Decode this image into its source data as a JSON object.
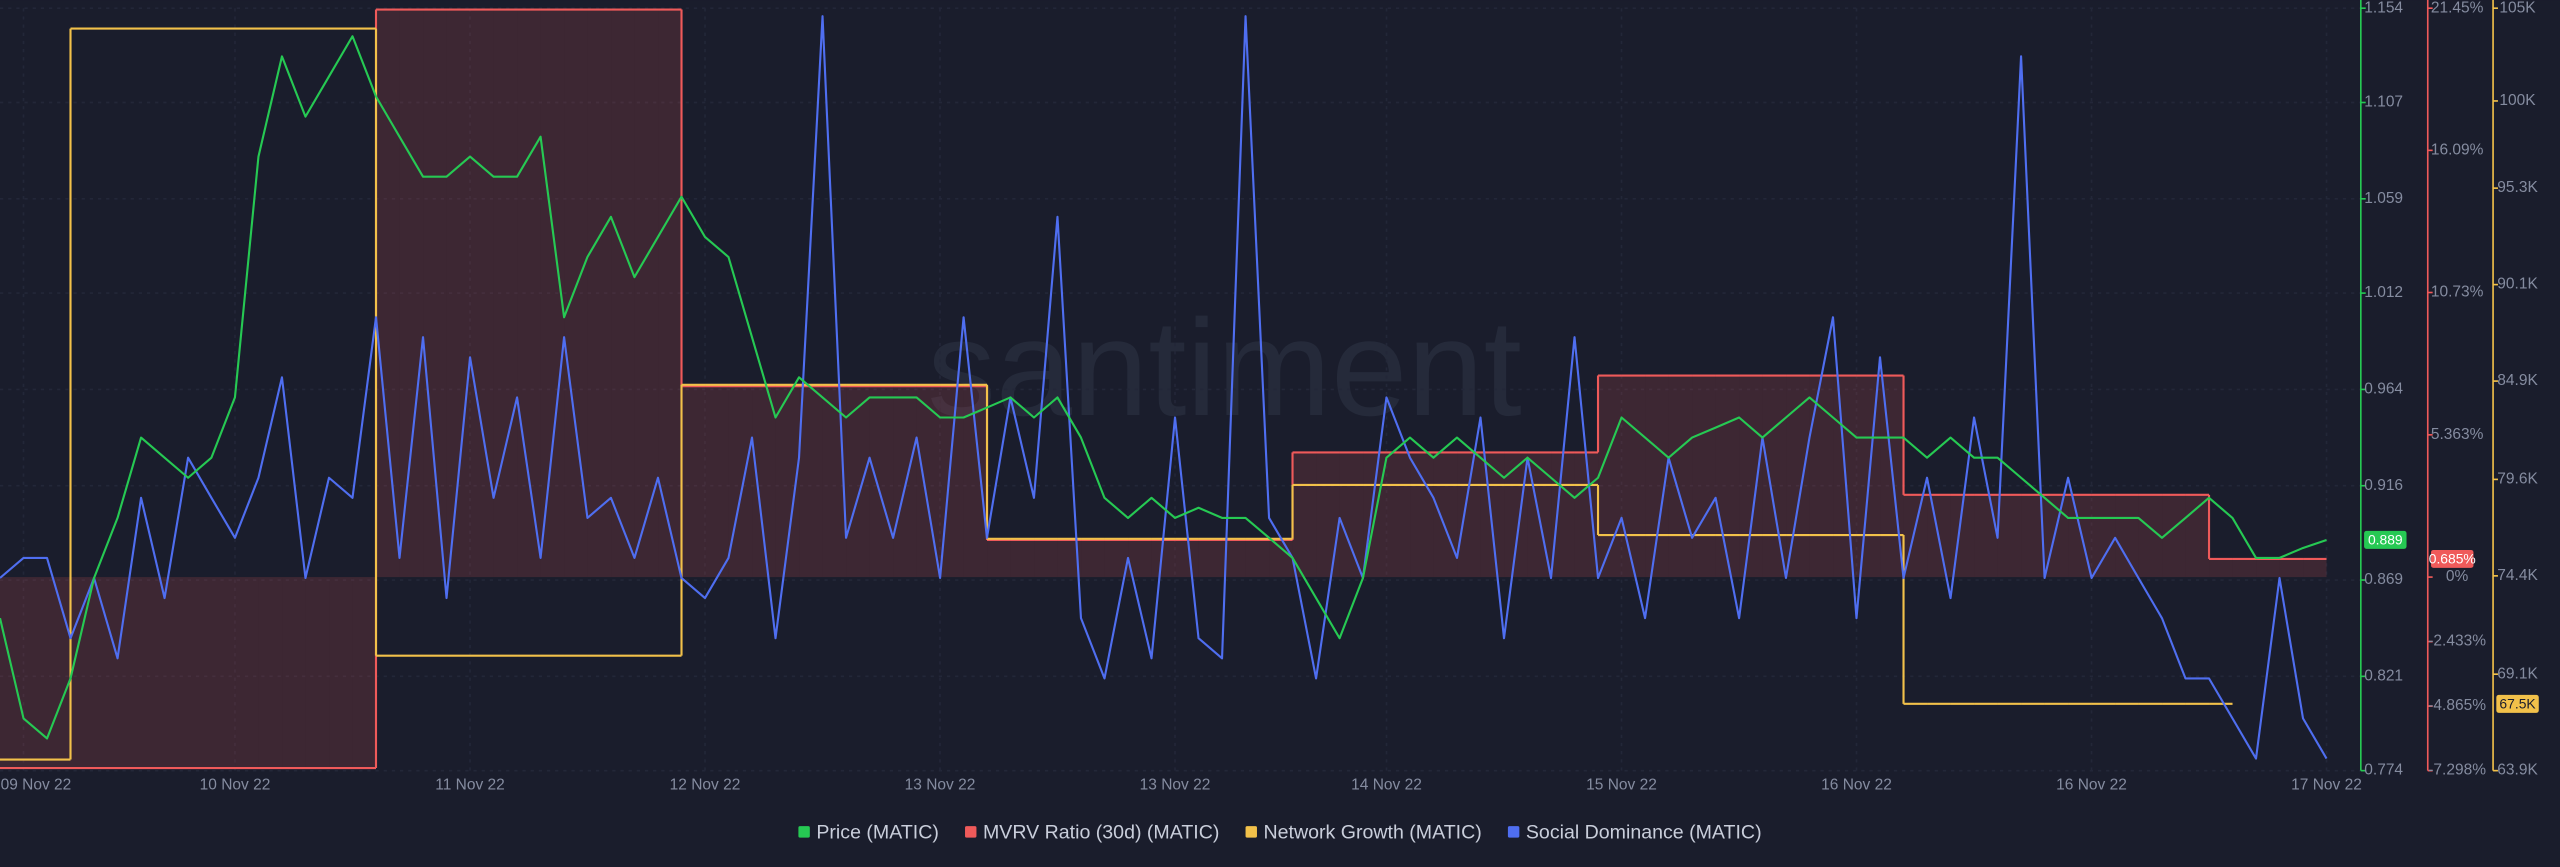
{
  "chart_data": {
    "type": "line",
    "watermark": "santiment",
    "categories": [
      null,
      "09 Nov 22",
      null,
      null,
      null,
      null,
      null,
      null,
      null,
      null,
      "10 Nov 22",
      null,
      null,
      null,
      null,
      null,
      null,
      null,
      null,
      null,
      "11 Nov 22",
      null,
      null,
      null,
      null,
      null,
      null,
      null,
      null,
      null,
      "12 Nov 22",
      null,
      null,
      null,
      null,
      null,
      null,
      null,
      null,
      null,
      "13 Nov 22",
      null,
      null,
      null,
      null,
      null,
      null,
      null,
      null,
      null,
      "13 Nov 22",
      null,
      null,
      null,
      null,
      null,
      null,
      null,
      null,
      "14 Nov 22",
      null,
      null,
      null,
      null,
      null,
      null,
      null,
      null,
      null,
      "15 Nov 22",
      null,
      null,
      null,
      null,
      null,
      null,
      null,
      null,
      null,
      "16 Nov 22",
      null,
      null,
      null,
      null,
      null,
      null,
      null,
      null,
      null,
      "16 Nov 22",
      null,
      null,
      null,
      null,
      null,
      null,
      null,
      null,
      null,
      "17 Nov 22"
    ],
    "ylim": [
      0.774,
      1.154
    ],
    "yticks": [
      0.774,
      0.821,
      0.869,
      0.916,
      0.964,
      1.012,
      1.059,
      1.107,
      1.154
    ],
    "y2lim": [
      -7.298,
      21.45
    ],
    "y2ticks": [
      {
        "value": -7.298,
        "label": "-7.298%"
      },
      {
        "value": -4.865,
        "label": "-4.865%"
      },
      {
        "value": -2.433,
        "label": "-2.433%"
      },
      {
        "value": 0,
        "label": "0%"
      },
      {
        "value": 5.363,
        "label": "5.363%"
      },
      {
        "value": 10.73,
        "label": "10.73%"
      },
      {
        "value": 16.09,
        "label": "16.09%"
      },
      {
        "value": 21.45,
        "label": "21.45%"
      }
    ],
    "y3lim": [
      63900,
      105000
    ],
    "y3ticks": [
      {
        "value": 63900,
        "label": "63.9K"
      },
      {
        "value": 69100,
        "label": "69.1K"
      },
      {
        "value": 74400,
        "label": "74.4K"
      },
      {
        "value": 79600,
        "label": "79.6K"
      },
      {
        "value": 84900,
        "label": "84.9K"
      },
      {
        "value": 90100,
        "label": "90.1K"
      },
      {
        "value": 95300,
        "label": "95.3K"
      },
      {
        "value": 100000,
        "label": "100K"
      },
      {
        "value": 105000,
        "label": "105K"
      }
    ],
    "grid": true,
    "series": [
      {
        "name": "Price (MATIC)",
        "color": "#26c953",
        "axis": "y",
        "last_value_label": "0.889",
        "values": [
          0.85,
          0.8,
          0.79,
          0.82,
          0.87,
          0.9,
          0.94,
          0.93,
          0.92,
          0.93,
          0.96,
          1.08,
          1.13,
          1.1,
          1.12,
          1.14,
          1.11,
          1.09,
          1.07,
          1.07,
          1.08,
          1.07,
          1.07,
          1.09,
          1.0,
          1.03,
          1.05,
          1.02,
          1.04,
          1.06,
          1.04,
          1.03,
          0.99,
          0.95,
          0.97,
          0.96,
          0.95,
          0.96,
          0.96,
          0.96,
          0.95,
          0.95,
          0.955,
          0.96,
          0.95,
          0.96,
          0.94,
          0.91,
          0.9,
          0.91,
          0.9,
          0.905,
          0.9,
          0.9,
          0.89,
          0.88,
          0.86,
          0.84,
          0.87,
          0.93,
          0.94,
          0.93,
          0.94,
          0.93,
          0.92,
          0.93,
          0.92,
          0.91,
          0.92,
          0.95,
          0.94,
          0.93,
          0.94,
          0.945,
          0.95,
          0.94,
          0.95,
          0.96,
          0.95,
          0.94,
          0.94,
          0.94,
          0.93,
          0.94,
          0.93,
          0.93,
          0.92,
          0.91,
          0.9,
          0.9,
          0.9,
          0.9,
          0.89,
          0.9,
          0.91,
          0.9,
          0.88,
          0.88,
          0.885,
          0.889
        ]
      },
      {
        "name": "MVRV Ratio (30d) (MATIC)",
        "color": "#ef5a5a",
        "axis": "y2",
        "step": true,
        "last_value_label": "0.685%",
        "values": [
          -7.2,
          -7.2,
          -7.2,
          -7.2,
          -7.2,
          -7.2,
          -7.2,
          -7.2,
          -7.2,
          -7.2,
          -7.2,
          -7.2,
          -7.2,
          -7.2,
          -7.2,
          -7.2,
          21.4,
          21.4,
          21.4,
          21.4,
          21.4,
          21.4,
          21.4,
          21.4,
          21.4,
          21.4,
          21.4,
          21.4,
          21.4,
          7.2,
          7.2,
          7.2,
          7.2,
          7.2,
          7.2,
          7.2,
          7.2,
          7.2,
          7.2,
          7.2,
          7.2,
          7.2,
          1.4,
          1.4,
          1.4,
          1.4,
          1.4,
          1.4,
          1.4,
          1.4,
          1.4,
          1.4,
          1.4,
          1.4,
          1.4,
          4.7,
          4.7,
          4.7,
          4.7,
          4.7,
          4.7,
          4.7,
          4.7,
          4.7,
          4.7,
          4.7,
          4.7,
          4.7,
          7.6,
          7.6,
          7.6,
          7.6,
          7.6,
          7.6,
          7.6,
          7.6,
          7.6,
          7.6,
          7.6,
          7.6,
          7.6,
          3.1,
          3.1,
          3.1,
          3.1,
          3.1,
          3.1,
          3.1,
          3.1,
          3.1,
          3.1,
          3.1,
          3.1,
          3.1,
          0.685,
          0.685,
          0.685,
          0.685,
          0.685,
          0.685
        ]
      },
      {
        "name": "Network Growth (MATIC)",
        "color": "#f2c14a",
        "axis": "y3",
        "step": true,
        "last_value_label": "67.5K",
        "values": [
          64500,
          64500,
          64500,
          103900,
          103900,
          103900,
          103900,
          103900,
          103900,
          103900,
          103900,
          103900,
          103900,
          103900,
          103900,
          103900,
          70100,
          70100,
          70100,
          70100,
          70100,
          70100,
          70100,
          70100,
          70100,
          70100,
          70100,
          70100,
          70100,
          84700,
          84700,
          84700,
          84700,
          84700,
          84700,
          84700,
          84700,
          84700,
          84700,
          84700,
          84700,
          84700,
          76400,
          76400,
          76400,
          76400,
          76400,
          76400,
          76400,
          76400,
          76400,
          76400,
          76400,
          76400,
          76400,
          79300,
          79300,
          79300,
          79300,
          79300,
          79300,
          79300,
          79300,
          79300,
          79300,
          79300,
          79300,
          79300,
          76600,
          76600,
          76600,
          76600,
          76600,
          76600,
          76600,
          76600,
          76600,
          76600,
          76600,
          76600,
          76600,
          67500,
          67500,
          67500,
          67500,
          67500,
          67500,
          67500,
          67500,
          67500,
          67500,
          67500,
          67500,
          67500,
          67500,
          null,
          null,
          null,
          null,
          null
        ]
      },
      {
        "name": "Social Dominance (MATIC)",
        "color": "#4f6ef0",
        "axis": "y",
        "values": [
          0.87,
          0.88,
          0.88,
          0.84,
          0.87,
          0.83,
          0.91,
          0.86,
          0.93,
          0.91,
          0.89,
          0.92,
          0.97,
          0.87,
          0.92,
          0.91,
          1.0,
          0.88,
          0.99,
          0.86,
          0.98,
          0.91,
          0.96,
          0.88,
          0.99,
          0.9,
          0.91,
          0.88,
          0.92,
          0.87,
          0.86,
          0.88,
          0.94,
          0.84,
          0.93,
          1.15,
          0.89,
          0.93,
          0.89,
          0.94,
          0.87,
          1.0,
          0.89,
          0.96,
          0.91,
          1.05,
          0.85,
          0.82,
          0.88,
          0.83,
          0.95,
          0.84,
          0.83,
          1.15,
          0.9,
          0.88,
          0.82,
          0.9,
          0.87,
          0.96,
          0.93,
          0.91,
          0.88,
          0.95,
          0.84,
          0.93,
          0.87,
          0.99,
          0.87,
          0.9,
          0.85,
          0.93,
          0.89,
          0.91,
          0.85,
          0.94,
          0.87,
          0.94,
          1.0,
          0.85,
          0.98,
          0.87,
          0.92,
          0.86,
          0.95,
          0.89,
          1.13,
          0.87,
          0.92,
          0.87,
          0.89,
          0.87,
          0.85,
          0.82,
          0.82,
          0.8,
          0.78,
          0.87,
          0.8,
          0.78
        ]
      }
    ]
  }
}
